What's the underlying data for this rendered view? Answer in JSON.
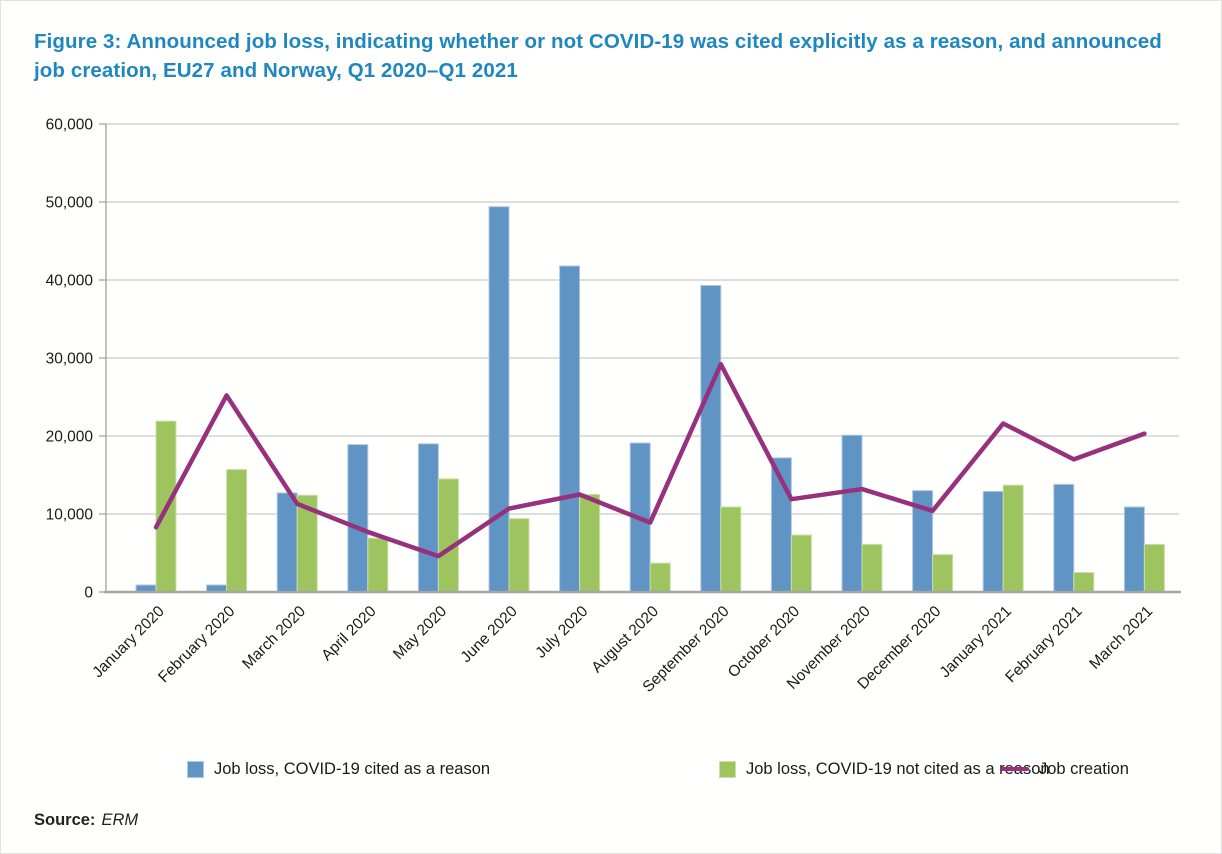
{
  "figure": {
    "title": "Figure 3: Announced job loss, indicating whether or not COVID-19 was cited explicitly as a reason, and announced job creation, EU27 and Norway, Q1 2020–Q1 2021"
  },
  "source": {
    "label": "Source:",
    "value": "ERM"
  },
  "colors": {
    "title_blue": "#1f87c0",
    "bar_blue": "#6094c4",
    "bar_blue_border": "#b3c9de",
    "bar_green": "#9ec45f",
    "bar_green_border": "#cbdfa6",
    "line_purple": "#97317e",
    "gridline": "#c9c9c9",
    "axis": "#9e9e9e",
    "axis_bottom": "#a6a6a6",
    "tick_text": "#1a1a1a"
  },
  "chart_data": {
    "type": "bar",
    "title": "",
    "xlabel": "",
    "ylabel": "",
    "ylim": [
      0,
      60000
    ],
    "ytick_interval": 10000,
    "yticks": [
      "0",
      "10,000",
      "20,000",
      "30,000",
      "40,000",
      "50,000",
      "60,000"
    ],
    "grid": true,
    "legend_position": "bottom",
    "categories": [
      "January 2020",
      "February 2020",
      "March 2020",
      "April 2020",
      "May 2020",
      "June 2020",
      "July 2020",
      "August 2020",
      "September 2020",
      "October 2020",
      "November 2020",
      "December 2020",
      "January 2021",
      "February 2021",
      "March 2021"
    ],
    "series": [
      {
        "name": "Job loss, COVID-19 cited as a reason",
        "type": "bar",
        "color": "#6094c4",
        "values": [
          900,
          900,
          12700,
          18900,
          19000,
          49400,
          41800,
          19100,
          39300,
          17200,
          20100,
          13000,
          12900,
          13800,
          10900
        ]
      },
      {
        "name": "Job loss, COVID-19 not cited as a reason",
        "type": "bar",
        "color": "#9ec45f",
        "values": [
          21900,
          15700,
          12400,
          6900,
          14500,
          9400,
          12500,
          3700,
          10900,
          7300,
          6100,
          4800,
          13700,
          2500,
          6100
        ]
      },
      {
        "name": "Job creation",
        "type": "line",
        "color": "#97317e",
        "values": [
          8300,
          25200,
          11300,
          7700,
          4600,
          10700,
          12500,
          8900,
          29200,
          11900,
          13200,
          10400,
          21600,
          17000,
          20300
        ]
      }
    ]
  }
}
